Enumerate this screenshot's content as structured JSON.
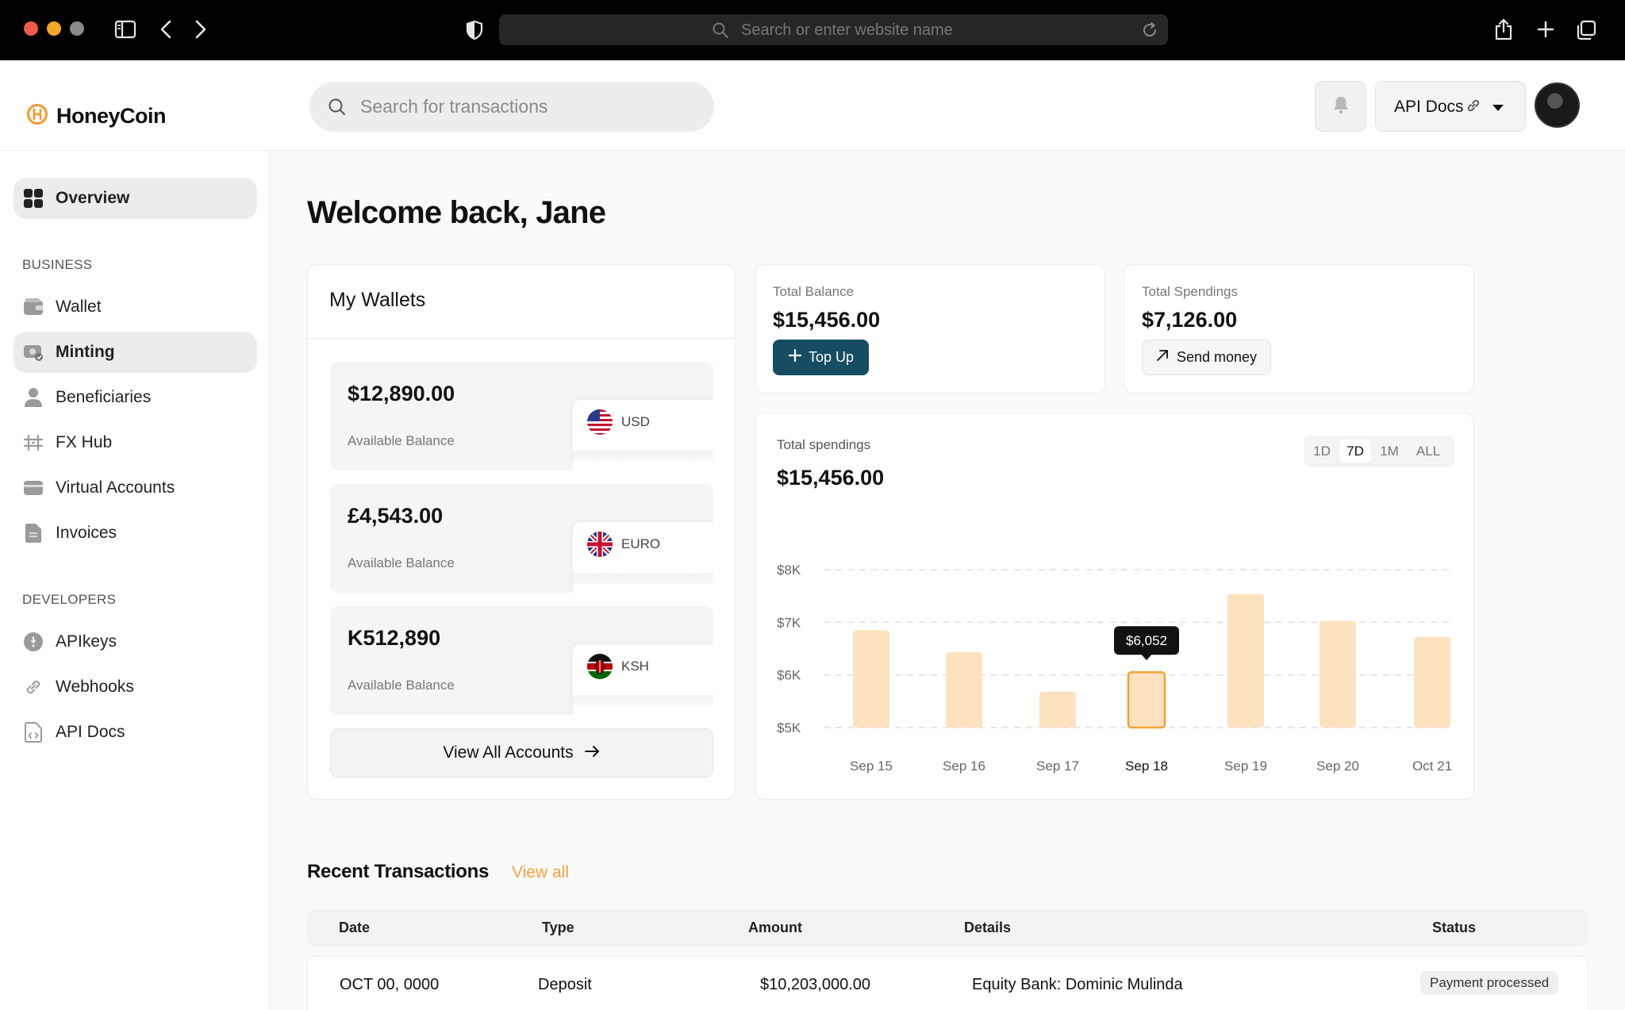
{
  "browser": {
    "url_placeholder": "Search or enter website name"
  },
  "header": {
    "brand": "HoneyCoin",
    "search_placeholder": "Search for transactions",
    "api_docs_label": "API Docs"
  },
  "sidebar": {
    "overview": "Overview",
    "business_heading": "BUSINESS",
    "business_items": [
      "Wallet",
      "Minting",
      "Beneficiaries",
      "FX Hub",
      "Virtual Accounts",
      "Invoices"
    ],
    "developers_heading": "DEVELOPERS",
    "developer_items": [
      "APIkeys",
      "Webhooks",
      "API Docs"
    ]
  },
  "main": {
    "welcome": "Welcome back, Jane"
  },
  "wallets": {
    "title": "My Wallets",
    "items": [
      {
        "amount": "$12,890.00",
        "label": "Available Balance",
        "currency": "USD"
      },
      {
        "amount": "£4,543.00",
        "label": "Available Balance",
        "currency": "EURO"
      },
      {
        "amount": "K512,890",
        "label": "Available Balance",
        "currency": "KSH"
      }
    ],
    "view_all": "View All Accounts"
  },
  "total_balance": {
    "label": "Total Balance",
    "value": "$15,456.00",
    "button": "Top Up"
  },
  "total_spendings": {
    "label": "Total Spendings",
    "value": "$7,126.00",
    "button": "Send money"
  },
  "spending_chart": {
    "label": "Total spendings",
    "value": "$15,456.00",
    "ranges": [
      "1D",
      "7D",
      "1M",
      "ALL"
    ],
    "active_range": "7D",
    "tooltip": "$6,052",
    "highlighted_index": 3,
    "colors": {
      "bar": "#fde2bf",
      "highlight_border": "#f5a035",
      "tooltip_bg": "#111111"
    }
  },
  "chart_data": {
    "type": "bar",
    "categories": [
      "Sep 15",
      "Sep 16",
      "Sep 17",
      "Sep 18",
      "Sep 19",
      "Sep 20",
      "Oct 21"
    ],
    "values": [
      6850,
      6430,
      5680,
      6052,
      7540,
      7030,
      6720
    ],
    "yticks": [
      "$8K",
      "$7K",
      "$6K",
      "$5K"
    ],
    "ytick_values": [
      8000,
      7000,
      6000,
      5000
    ],
    "ylim": [
      5000,
      8000
    ],
    "grid": true,
    "title": "",
    "xlabel": "",
    "ylabel": ""
  },
  "recent": {
    "title": "Recent Transactions",
    "view_all": "View all",
    "columns": [
      "Date",
      "Type",
      "Amount",
      "Details",
      "Status"
    ],
    "rows": [
      {
        "date": "OCT 00, 0000",
        "type": "Deposit",
        "amount": "$10,203,000.00",
        "details": "Equity Bank: Dominic Mulinda",
        "status": "Payment processed"
      }
    ]
  }
}
